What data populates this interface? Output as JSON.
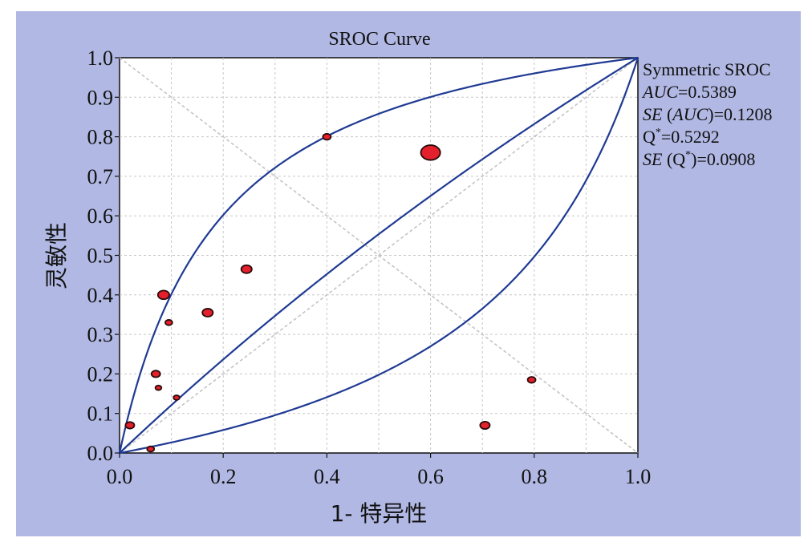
{
  "chart_data": {
    "type": "scatter",
    "title": "SROC Curve",
    "xlabel": "1- 特异性",
    "ylabel": "灵敏性",
    "xlim": [
      0,
      1
    ],
    "ylim": [
      0,
      1
    ],
    "x_ticks": [
      "0.0",
      "0.2",
      "0.4",
      "0.6",
      "0.8",
      "1.0"
    ],
    "y_ticks": [
      "0.0",
      "0.1",
      "0.2",
      "0.3",
      "0.4",
      "0.5",
      "0.6",
      "0.7",
      "0.8",
      "0.9",
      "1.0"
    ],
    "grid": true,
    "background_color": "#b1b8e3",
    "plot_background": "#ffffff",
    "curve_color": "#1f3a93",
    "point_color": "#e3202b",
    "points": [
      {
        "x": 0.02,
        "y": 0.07,
        "size": 1.0
      },
      {
        "x": 0.06,
        "y": 0.01,
        "size": 0.8
      },
      {
        "x": 0.07,
        "y": 0.2,
        "size": 1.0
      },
      {
        "x": 0.075,
        "y": 0.165,
        "size": 0.7
      },
      {
        "x": 0.085,
        "y": 0.4,
        "size": 1.3
      },
      {
        "x": 0.095,
        "y": 0.33,
        "size": 0.8
      },
      {
        "x": 0.11,
        "y": 0.14,
        "size": 0.7
      },
      {
        "x": 0.17,
        "y": 0.355,
        "size": 1.2
      },
      {
        "x": 0.245,
        "y": 0.465,
        "size": 1.2
      },
      {
        "x": 0.4,
        "y": 0.8,
        "size": 0.9
      },
      {
        "x": 0.6,
        "y": 0.76,
        "size": 2.2
      },
      {
        "x": 0.705,
        "y": 0.07,
        "size": 1.1
      },
      {
        "x": 0.795,
        "y": 0.185,
        "size": 0.9
      }
    ],
    "sroc": {
      "name": "Symmetric SROC"
    },
    "stats": {
      "auc": {
        "label": "AUC",
        "value": "=0.5389"
      },
      "se_auc": {
        "label_se": "SE",
        "label_open": " (",
        "label_var": "AUC",
        "label_close": ")",
        "value": "=0.1208"
      },
      "q": {
        "label": "Q",
        "sup": "*",
        "value": "=0.5292"
      },
      "se_q": {
        "label_se": "SE",
        "label_open": " (Q",
        "sup": "*",
        "label_close": ")",
        "value": "=0.0908"
      }
    }
  }
}
